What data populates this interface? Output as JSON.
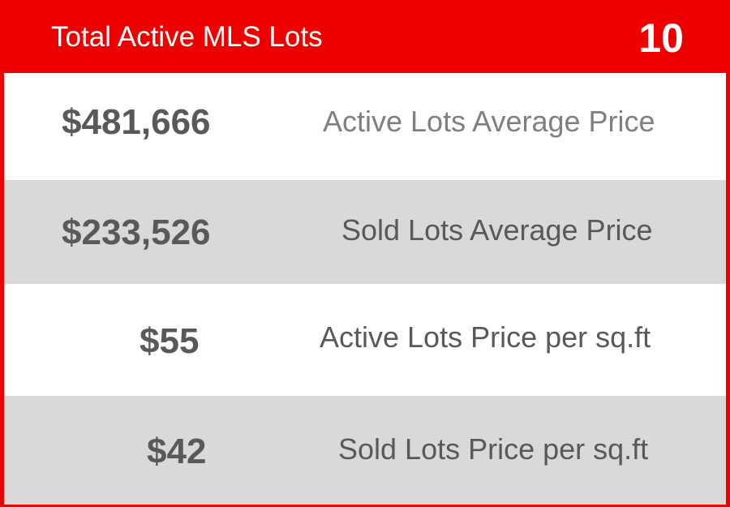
{
  "header": {
    "title": "Total Active MLS Lots",
    "count": "10"
  },
  "rows": [
    {
      "value": "$481,666",
      "label": "Active Lots Average Price"
    },
    {
      "value": "$233,526",
      "label": "Sold Lots Average Price"
    },
    {
      "value": "$55",
      "label": "Active Lots Price per sq.ft"
    },
    {
      "value": "$42",
      "label": "Sold Lots Price per sq.ft"
    }
  ],
  "colors": {
    "accent": "#ee0000",
    "row_alt": "#d9d9d9",
    "value_text": "#595959",
    "label_text_light": "#7f7f7f"
  }
}
